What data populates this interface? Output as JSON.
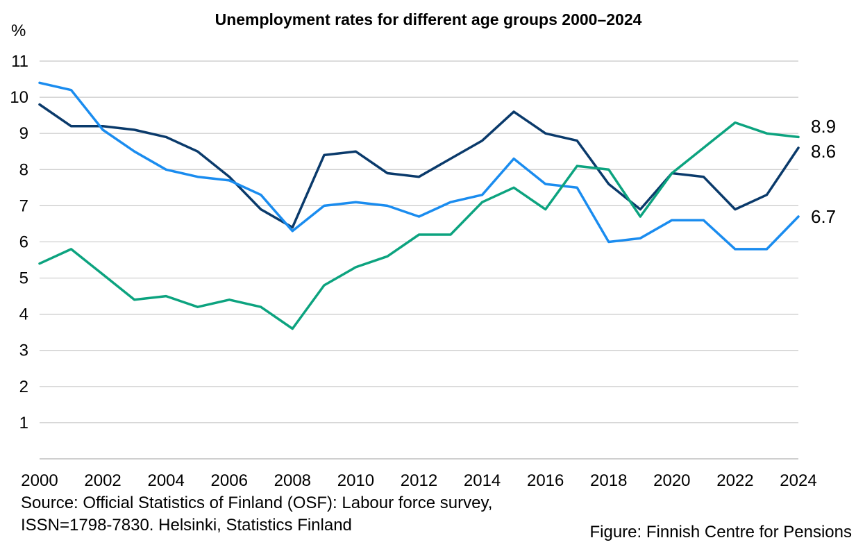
{
  "chart_data": {
    "type": "line",
    "title": "Unemployment rates for different age groups 2000–2024",
    "ylabel": "%",
    "xlabel": "",
    "ylim": [
      0,
      11
    ],
    "yticks": [
      1,
      2,
      3,
      4,
      5,
      6,
      7,
      8,
      9,
      10,
      11
    ],
    "xlim": [
      2000,
      2024
    ],
    "xticks": [
      2000,
      2002,
      2004,
      2006,
      2008,
      2010,
      2012,
      2014,
      2016,
      2018,
      2020,
      2022,
      2024
    ],
    "grid": true,
    "x": [
      2000,
      2001,
      2002,
      2003,
      2004,
      2005,
      2006,
      2007,
      2008,
      2009,
      2010,
      2011,
      2012,
      2013,
      2014,
      2015,
      2016,
      2017,
      2018,
      2019,
      2020,
      2021,
      2022,
      2023,
      2024
    ],
    "series": [
      {
        "color": "#0a3a6b",
        "values": [
          9.8,
          9.2,
          9.2,
          9.1,
          8.9,
          8.5,
          7.8,
          6.9,
          6.4,
          8.4,
          8.5,
          7.9,
          7.8,
          8.3,
          8.8,
          9.6,
          9.0,
          8.8,
          7.6,
          6.9,
          7.9,
          7.8,
          6.9,
          7.3,
          8.6
        ]
      },
      {
        "color": "#1a8cef",
        "values": [
          10.4,
          10.2,
          9.1,
          8.5,
          8.0,
          7.8,
          7.7,
          7.3,
          6.3,
          7.0,
          7.1,
          7.0,
          6.7,
          7.1,
          7.3,
          8.3,
          7.6,
          7.5,
          6.0,
          6.1,
          6.6,
          6.6,
          5.8,
          5.8,
          6.7
        ]
      },
      {
        "color": "#0ca37f",
        "values": [
          5.4,
          5.8,
          5.1,
          4.4,
          4.5,
          4.2,
          4.4,
          4.2,
          3.6,
          4.8,
          5.3,
          5.6,
          6.2,
          6.2,
          7.1,
          7.5,
          6.9,
          8.1,
          8.0,
          6.7,
          7.9,
          8.6,
          9.3,
          9.0,
          8.9
        ]
      }
    ],
    "end_labels": [
      "8.9",
      "8.6",
      "6.7"
    ]
  },
  "source_line_1": "Source: Official Statistics of Finland (OSF): Labour force survey,",
  "source_line_2": "ISSN=1798-7830. Helsinki, Statistics Finland",
  "credit": "Figure: Finnish Centre for Pensions"
}
